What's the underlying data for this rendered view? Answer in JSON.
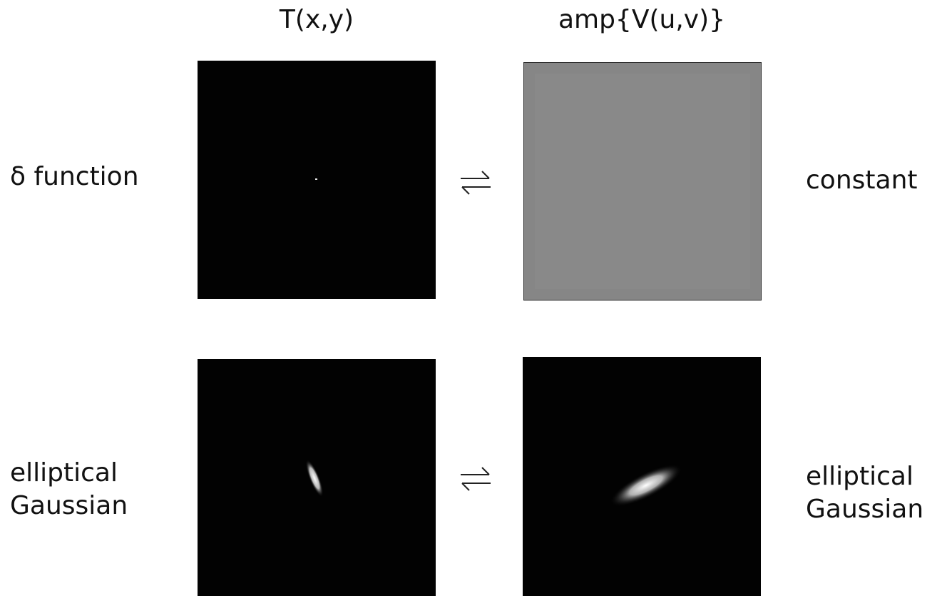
{
  "headers": {
    "left": "T(x,y)",
    "right": "amp{V(u,v)}"
  },
  "rows": [
    {
      "left_label_lines": [
        "δ function"
      ],
      "right_label_lines": [
        "constant"
      ],
      "left_panel": "point source image",
      "right_panel": "uniform gray amplitude"
    },
    {
      "left_label_lines": [
        "elliptical",
        "Gaussian"
      ],
      "right_label_lines": [
        "elliptical",
        "Gaussian"
      ],
      "left_panel": "narrow tilted elliptical Gaussian",
      "right_panel": "broad tilted elliptical Gaussian"
    }
  ],
  "arrow_icon": "left-right-harpoons-icon",
  "colors": {
    "panel_dark": "#020202",
    "panel_gray": "#868686",
    "panel_border": "#2a2a2a",
    "blob": "#ffffff"
  }
}
